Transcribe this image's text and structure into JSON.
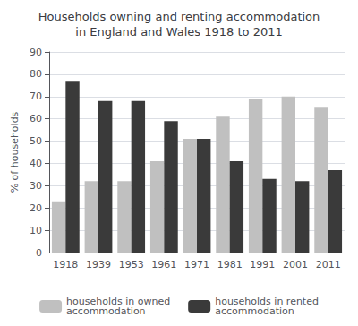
{
  "chart_data": {
    "type": "bar",
    "title": "Households owning and renting accommodation\nin England and Wales 1918 to 2011",
    "categories": [
      "1918",
      "1939",
      "1953",
      "1961",
      "1971",
      "1981",
      "1991",
      "2001",
      "2011"
    ],
    "series": [
      {
        "name": "households in owned\naccommodation",
        "color": "#c0c0c0",
        "values": [
          23,
          32,
          32,
          41,
          51,
          61,
          69,
          70,
          65
        ]
      },
      {
        "name": "households in rented\naccommodation",
        "color": "#3a3a3a",
        "values": [
          77,
          68,
          68,
          59,
          51,
          41,
          33,
          32,
          37
        ]
      }
    ],
    "ylabel": "% of households",
    "ylim": [
      0,
      90
    ],
    "yticks": [
      0,
      10,
      20,
      30,
      40,
      50,
      60,
      70,
      80,
      90
    ],
    "grid": true,
    "legend": "bottom"
  }
}
